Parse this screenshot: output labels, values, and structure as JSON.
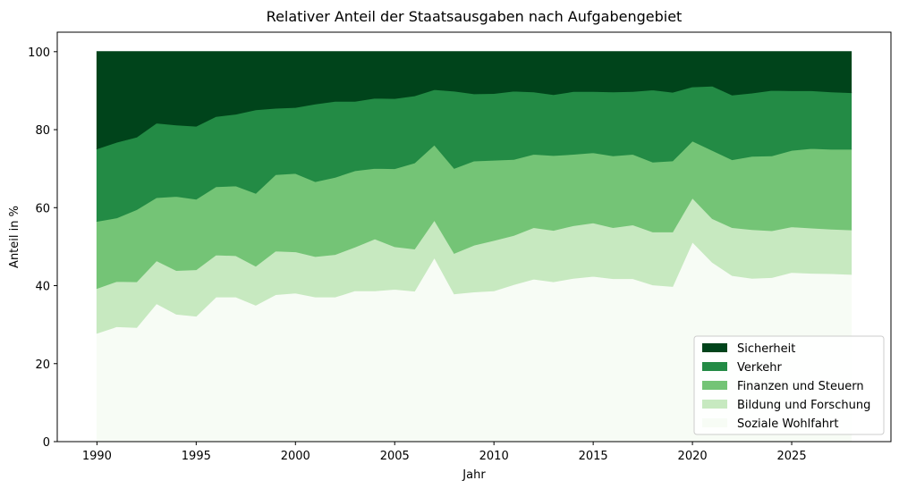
{
  "chart_data": {
    "type": "area",
    "stacked": true,
    "normalized_percent": true,
    "title": "Relativer Anteil der Staatsausgaben nach Aufgabengebiet",
    "xlabel": "Jahr",
    "ylabel": "Anteil in %",
    "xlim": [
      1988,
      2030
    ],
    "ylim": [
      0,
      105
    ],
    "x_ticks": [
      1990,
      1995,
      2000,
      2005,
      2010,
      2015,
      2020,
      2025
    ],
    "y_ticks": [
      0,
      20,
      40,
      60,
      80,
      100
    ],
    "grid": false,
    "legend_position": "lower-right",
    "x": [
      1990,
      1991,
      1992,
      1993,
      1994,
      1995,
      1996,
      1997,
      1998,
      1999,
      2000,
      2001,
      2002,
      2003,
      2004,
      2005,
      2006,
      2007,
      2008,
      2009,
      2010,
      2011,
      2012,
      2013,
      2014,
      2015,
      2016,
      2017,
      2018,
      2019,
      2020,
      2021,
      2022,
      2023,
      2024,
      2025,
      2026,
      2027,
      2028
    ],
    "series": [
      {
        "name": "Soziale Wohlfahrt",
        "color": "#f7fcf5",
        "values": [
          27.8,
          29.5,
          29.3,
          35.4,
          32.7,
          32.2,
          37.1,
          37.1,
          35.0,
          37.7,
          38.1,
          37.1,
          37.1,
          38.7,
          38.7,
          39.1,
          38.6,
          47.2,
          37.9,
          38.4,
          38.7,
          40.3,
          41.7,
          41.0,
          41.9,
          42.4,
          41.8,
          41.8,
          40.2,
          39.8,
          51.2,
          46.0,
          42.6,
          41.9,
          42.1,
          43.4,
          43.2,
          43.1,
          42.9
        ]
      },
      {
        "name": "Bildung und Forschung",
        "color": "#c7e9c0",
        "values": [
          11.5,
          11.6,
          11.7,
          11.0,
          11.2,
          11.9,
          10.8,
          10.6,
          10.0,
          11.2,
          10.6,
          10.4,
          10.9,
          11.2,
          13.3,
          10.9,
          10.8,
          9.6,
          10.4,
          12.0,
          12.9,
          12.6,
          13.2,
          13.2,
          13.5,
          13.7,
          13.1,
          13.8,
          13.6,
          14.0,
          11.3,
          11.2,
          12.3,
          12.5,
          12.0,
          11.7,
          11.6,
          11.4,
          11.4
        ]
      },
      {
        "name": "Finanzen und Steuern",
        "color": "#74c476",
        "values": [
          17.2,
          16.3,
          18.5,
          16.2,
          19.0,
          18.1,
          17.5,
          17.9,
          18.7,
          19.6,
          20.1,
          19.2,
          19.8,
          19.6,
          18.1,
          20.0,
          22.1,
          19.3,
          21.8,
          21.6,
          20.6,
          19.5,
          18.8,
          19.2,
          18.3,
          18.0,
          18.4,
          18.1,
          17.9,
          18.2,
          14.6,
          17.5,
          17.4,
          18.8,
          19.2,
          19.6,
          20.4,
          20.5,
          20.7
        ]
      },
      {
        "name": "Verkehr",
        "color": "#238b45",
        "values": [
          18.6,
          19.4,
          18.6,
          19.1,
          18.3,
          18.7,
          18.0,
          18.4,
          21.4,
          17.0,
          16.9,
          19.9,
          19.5,
          17.8,
          18.0,
          18.0,
          17.2,
          14.2,
          19.8,
          17.2,
          17.1,
          17.5,
          16.0,
          15.6,
          16.1,
          15.7,
          16.4,
          16.1,
          18.5,
          17.6,
          13.9,
          16.5,
          16.6,
          16.2,
          16.8,
          15.3,
          14.8,
          14.7,
          14.5
        ]
      },
      {
        "name": "Sicherheit",
        "color": "#00441b",
        "values": [
          24.9,
          23.2,
          21.9,
          18.3,
          18.8,
          19.1,
          16.6,
          16.0,
          14.9,
          14.5,
          14.3,
          13.4,
          12.7,
          12.7,
          11.9,
          12.0,
          11.3,
          9.7,
          10.1,
          10.8,
          10.7,
          10.1,
          10.3,
          11.0,
          10.2,
          10.2,
          10.3,
          10.2,
          9.8,
          10.4,
          9.0,
          8.8,
          11.1,
          10.6,
          9.9,
          10.0,
          10.0,
          10.3,
          10.5
        ]
      }
    ]
  }
}
